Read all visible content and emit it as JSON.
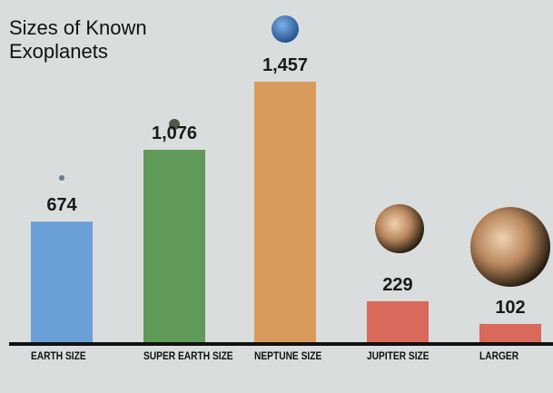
{
  "chart_data": {
    "type": "bar",
    "title": "Sizes of Known Exoplanets",
    "categories": [
      "EARTH SIZE",
      "SUPER EARTH SIZE",
      "NEPTUNE SIZE",
      "JUPITER SIZE",
      "LARGER"
    ],
    "values": [
      674,
      1076,
      1457,
      229,
      102
    ],
    "value_labels": [
      "674",
      "1,076",
      "1,457",
      "229",
      "102"
    ],
    "colors": [
      "#6a9fd8",
      "#5f9a58",
      "#d99b5c",
      "#d9695a",
      "#d9695a"
    ]
  }
}
